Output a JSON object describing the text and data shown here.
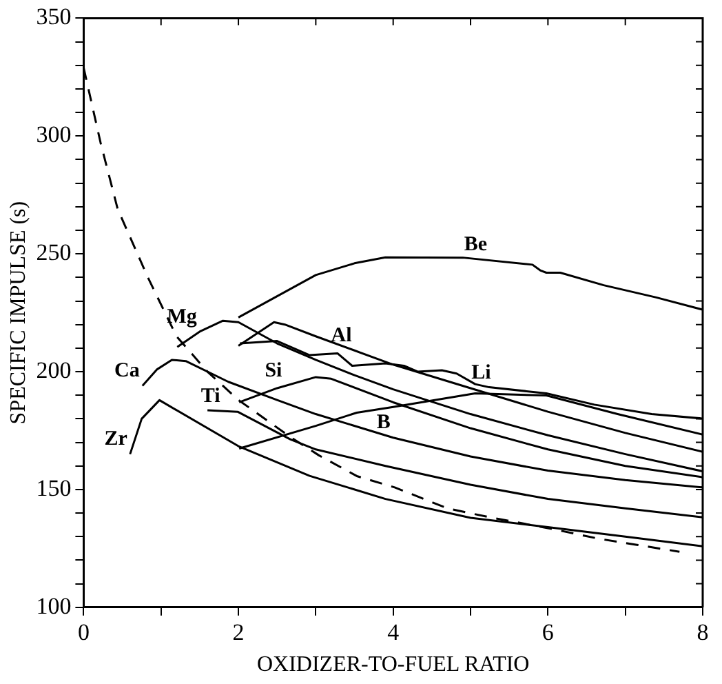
{
  "chart_data": {
    "type": "line",
    "xlabel": "OXIDIZER-TO-FUEL RATIO",
    "ylabel": "SPECIFIC IMPULSE (s)",
    "xlim": [
      0,
      8
    ],
    "ylim": [
      100,
      350
    ],
    "xticks": [
      0,
      {
        "value": 1,
        "label": null
      },
      2,
      {
        "value": 3,
        "label": null
      },
      4,
      {
        "value": 5,
        "label": null
      },
      6,
      {
        "value": 7,
        "label": null
      },
      8
    ],
    "yticks": [
      100,
      {
        "value": 110,
        "label": null
      },
      {
        "value": 120,
        "label": null
      },
      {
        "value": 130,
        "label": null
      },
      {
        "value": 140,
        "label": null
      },
      150,
      {
        "value": 160,
        "label": null
      },
      {
        "value": 170,
        "label": null
      },
      {
        "value": 180,
        "label": null
      },
      {
        "value": 190,
        "label": null
      },
      200,
      {
        "value": 210,
        "label": null
      },
      {
        "value": 220,
        "label": null
      },
      {
        "value": 230,
        "label": null
      },
      {
        "value": 240,
        "label": null
      },
      250,
      {
        "value": 260,
        "label": null
      },
      {
        "value": 270,
        "label": null
      },
      {
        "value": 280,
        "label": null
      },
      {
        "value": 290,
        "label": null
      },
      300,
      {
        "value": 310,
        "label": null
      },
      {
        "value": 320,
        "label": null
      },
      {
        "value": 330,
        "label": null
      },
      {
        "value": 340,
        "label": null
      },
      350
    ],
    "grid": false,
    "legend": false,
    "marker": "none",
    "annotations": [
      {
        "text": "Be",
        "x": 5.25,
        "y": 247.7
      },
      {
        "text": "Mg",
        "x": 1.5,
        "y": 217
      },
      {
        "text": "Al",
        "x": 3.5,
        "y": 209
      },
      {
        "text": "Ca",
        "x": 0.76,
        "y": 194
      },
      {
        "text": "Si",
        "x": 2.6,
        "y": 194
      },
      {
        "text": "Li",
        "x": 5.3,
        "y": 193.2
      },
      {
        "text": "Ti",
        "x": 1.8,
        "y": 183.3
      },
      {
        "text": "B",
        "x": 4.0,
        "y": 172
      },
      {
        "text": "Zr",
        "x": 0.6,
        "y": 165
      }
    ],
    "series": [
      {
        "color": "#000000",
        "line_style": "solid",
        "x": [
          2.0,
          2.5,
          3.0,
          3.5,
          3.9,
          4.9,
          5.8,
          5.9,
          5.98,
          6.16,
          6.72,
          7.4,
          8.0
        ],
        "values": [
          223,
          232,
          241,
          246,
          248.5,
          248.4,
          245.4,
          243,
          242,
          242,
          236.7,
          231.5,
          226.3
        ]
      },
      {
        "color": "#000000",
        "line_style": "solid",
        "x": [
          1.21,
          1.5,
          1.8,
          2.0,
          2.5,
          3.0,
          3.5,
          4.0,
          5.0,
          6.0,
          7.0,
          8.0
        ],
        "values": [
          210.5,
          217,
          221.6,
          221,
          212,
          205,
          198.5,
          192.5,
          182,
          173,
          165,
          157.7
        ]
      },
      {
        "color": "#000000",
        "line_style": "solid",
        "x": [
          2.0,
          2.46,
          2.6,
          3.0,
          3.5,
          4.0,
          5.0,
          6.0,
          7.0,
          8.0
        ],
        "values": [
          211,
          221,
          220,
          215,
          209,
          203,
          193,
          183,
          174,
          166
        ]
      },
      {
        "color": "#000000",
        "line_style": "solid",
        "x": [
          0.76,
          0.95,
          1.14,
          1.32,
          1.87,
          2.5,
          3.0,
          4.0,
          5.0,
          6.0,
          7.0,
          8.0
        ],
        "values": [
          194,
          201,
          205,
          204.5,
          195.7,
          188,
          182,
          172,
          164,
          158,
          154,
          150.9
        ]
      },
      {
        "color": "#000000",
        "line_style": "solid",
        "x": [
          2.01,
          2.5,
          3.0,
          3.2,
          4.0,
          5.0,
          6.0,
          7.0,
          8.0
        ],
        "values": [
          187,
          193,
          197.7,
          197,
          187,
          176,
          167,
          160,
          155.2
        ]
      },
      {
        "color": "#000000",
        "line_style": "solid",
        "x": [
          2.02,
          2.5,
          2.92,
          3.28,
          3.47,
          3.9,
          4.14,
          4.32,
          4.63,
          4.82,
          5.06,
          5.24,
          5.98,
          6.6,
          7.34,
          8.0
        ],
        "values": [
          212,
          213,
          207,
          207.8,
          202.5,
          203.5,
          202.5,
          200,
          200.6,
          199.2,
          194.7,
          193.4,
          190.8,
          186,
          182,
          180.1
        ]
      },
      {
        "color": "#000000",
        "line_style": "solid",
        "x": [
          1.6,
          1.99,
          2.67,
          3.0,
          3.9,
          5.0,
          6.0,
          7.0,
          8.0
        ],
        "values": [
          183.6,
          183,
          171.3,
          167,
          160,
          152,
          146,
          142,
          138.2
        ]
      },
      {
        "color": "#000000",
        "line_style": "solid",
        "x": [
          2.01,
          3.0,
          3.53,
          4.0,
          5.06,
          5.98,
          6.9,
          8.0
        ],
        "values": [
          167.4,
          177,
          182.6,
          185,
          190.8,
          189.9,
          182,
          173.3
        ]
      },
      {
        "color": "#000000",
        "line_style": "solid",
        "x": [
          0.6,
          0.75,
          0.98,
          2.0,
          2.92,
          3.9,
          5.0,
          6.0,
          7.0,
          8.0
        ],
        "values": [
          165,
          180,
          187.9,
          168.4,
          155.8,
          146,
          138,
          134,
          130,
          125.9
        ]
      },
      {
        "color": "#000000",
        "line_style": "dashed",
        "x": [
          0.0,
          0.22,
          0.44,
          0.83,
          1.2,
          1.6,
          2.0,
          2.67,
          3.04,
          3.53,
          4.02,
          4.7,
          5.25,
          6.05,
          6.66,
          7.15,
          7.7
        ],
        "values": [
          329,
          297,
          269,
          240,
          215,
          200,
          188,
          172.3,
          164.5,
          155.7,
          150.9,
          142,
          138.2,
          133.3,
          129.1,
          126.5,
          123.6
        ]
      }
    ]
  }
}
